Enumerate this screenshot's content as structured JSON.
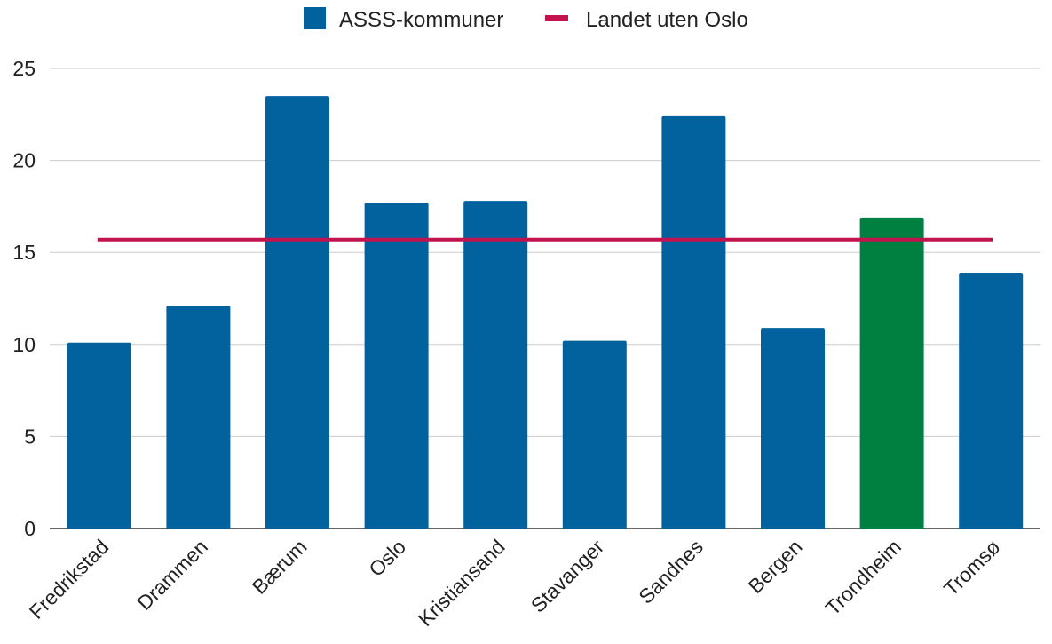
{
  "chart_data": {
    "type": "bar",
    "categories": [
      "Fredrikstad",
      "Drammen",
      "Bærum",
      "Oslo",
      "Kristiansand",
      "Stavanger",
      "Sandnes",
      "Bergen",
      "Trondheim",
      "Tromsø"
    ],
    "series": [
      {
        "name": "ASSS-kommuner",
        "type": "bar",
        "values": [
          10.1,
          12.1,
          23.5,
          17.7,
          17.8,
          10.2,
          22.4,
          10.9,
          16.9,
          13.9
        ],
        "color": "#01629e",
        "highlight": {
          "category": "Trondheim",
          "color": "#008040"
        }
      },
      {
        "name": "Landet uten Oslo",
        "type": "line",
        "value": 15.7,
        "color": "#c2134f"
      }
    ],
    "ylim": [
      0,
      25
    ],
    "yticks": [
      0,
      5,
      10,
      15,
      20,
      25
    ],
    "grid": true,
    "legend_position": "top"
  }
}
